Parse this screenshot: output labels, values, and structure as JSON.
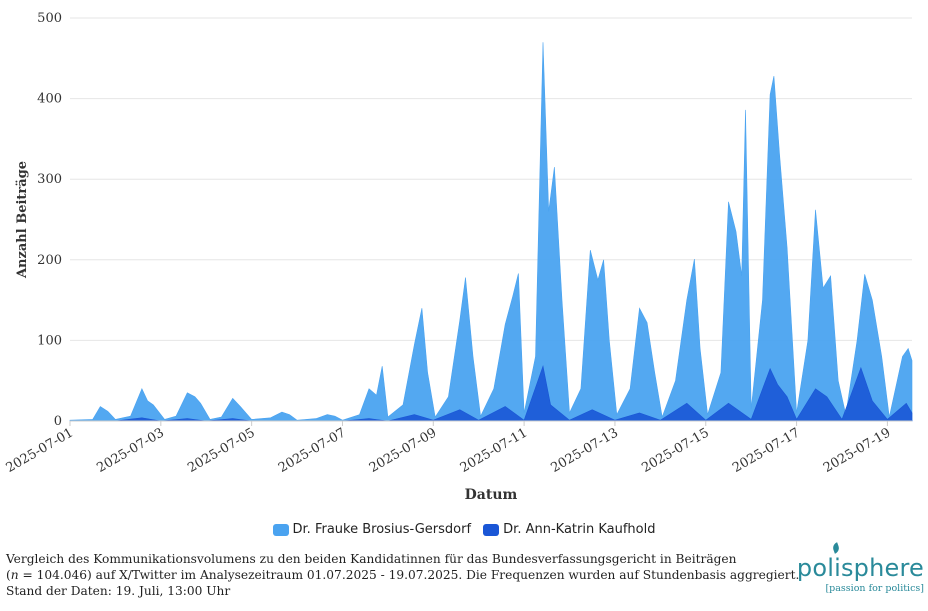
{
  "chart_data": {
    "type": "area",
    "title": "",
    "xlabel": "Datum",
    "ylabel": "Anzahl Beiträge",
    "ylim": [
      0,
      500
    ],
    "yticks": [
      "0",
      "100",
      "200",
      "300",
      "400",
      "500"
    ],
    "xlim": [
      "2025-07-01",
      "2025-07-19 13:00"
    ],
    "xticks": [
      "2025-07-01",
      "2025-07-03",
      "2025-07-05",
      "2025-07-07",
      "2025-07-09",
      "2025-07-11",
      "2025-07-13",
      "2025-07-15",
      "2025-07-17",
      "2025-07-19"
    ],
    "grid": true,
    "legend": "bottom-center",
    "series": [
      {
        "name": "Dr. Frauke Brosius-Gersdorf",
        "color": "#4aa3f0",
        "points": [
          [
            "2025-07-01 00:00",
            1
          ],
          [
            "2025-07-01 12:00",
            2
          ],
          [
            "2025-07-01 16:00",
            18
          ],
          [
            "2025-07-01 20:00",
            12
          ],
          [
            "2025-07-02 00:00",
            2
          ],
          [
            "2025-07-02 08:00",
            6
          ],
          [
            "2025-07-02 14:00",
            40
          ],
          [
            "2025-07-02 17:00",
            25
          ],
          [
            "2025-07-02 20:00",
            20
          ],
          [
            "2025-07-03 02:00",
            2
          ],
          [
            "2025-07-03 08:00",
            6
          ],
          [
            "2025-07-03 14:00",
            35
          ],
          [
            "2025-07-03 18:00",
            30
          ],
          [
            "2025-07-03 21:00",
            22
          ],
          [
            "2025-07-04 02:00",
            2
          ],
          [
            "2025-07-04 08:00",
            5
          ],
          [
            "2025-07-04 14:00",
            28
          ],
          [
            "2025-07-04 18:00",
            18
          ],
          [
            "2025-07-05 00:00",
            2
          ],
          [
            "2025-07-05 10:00",
            4
          ],
          [
            "2025-07-05 16:00",
            11
          ],
          [
            "2025-07-05 20:00",
            8
          ],
          [
            "2025-07-06 00:00",
            1
          ],
          [
            "2025-07-06 10:00",
            3
          ],
          [
            "2025-07-06 16:00",
            8
          ],
          [
            "2025-07-06 20:00",
            6
          ],
          [
            "2025-07-07 00:00",
            1
          ],
          [
            "2025-07-07 09:00",
            8
          ],
          [
            "2025-07-07 14:00",
            40
          ],
          [
            "2025-07-07 18:00",
            32
          ],
          [
            "2025-07-07 21:00",
            68
          ],
          [
            "2025-07-08 00:00",
            5
          ],
          [
            "2025-07-08 08:00",
            20
          ],
          [
            "2025-07-08 14:00",
            95
          ],
          [
            "2025-07-08 18:00",
            140
          ],
          [
            "2025-07-08 21:00",
            60
          ],
          [
            "2025-07-09 01:00",
            5
          ],
          [
            "2025-07-09 08:00",
            30
          ],
          [
            "2025-07-09 14:00",
            125
          ],
          [
            "2025-07-09 17:00",
            178
          ],
          [
            "2025-07-09 21:00",
            80
          ],
          [
            "2025-07-10 01:00",
            6
          ],
          [
            "2025-07-10 08:00",
            40
          ],
          [
            "2025-07-10 14:00",
            120
          ],
          [
            "2025-07-10 18:00",
            155
          ],
          [
            "2025-07-10 21:00",
            183
          ],
          [
            "2025-07-11 00:00",
            10
          ],
          [
            "2025-07-11 06:00",
            80
          ],
          [
            "2025-07-11 10:00",
            470
          ],
          [
            "2025-07-11 13:00",
            260
          ],
          [
            "2025-07-11 16:00",
            315
          ],
          [
            "2025-07-11 20:00",
            150
          ],
          [
            "2025-07-12 00:00",
            10
          ],
          [
            "2025-07-12 06:00",
            40
          ],
          [
            "2025-07-12 11:00",
            212
          ],
          [
            "2025-07-12 15:00",
            175
          ],
          [
            "2025-07-12 18:00",
            200
          ],
          [
            "2025-07-12 21:00",
            100
          ],
          [
            "2025-07-13 01:00",
            8
          ],
          [
            "2025-07-13 08:00",
            40
          ],
          [
            "2025-07-13 13:00",
            140
          ],
          [
            "2025-07-13 17:00",
            122
          ],
          [
            "2025-07-13 21:00",
            60
          ],
          [
            "2025-07-14 01:00",
            5
          ],
          [
            "2025-07-14 08:00",
            50
          ],
          [
            "2025-07-14 14:00",
            150
          ],
          [
            "2025-07-14 18:00",
            201
          ],
          [
            "2025-07-14 21:00",
            90
          ],
          [
            "2025-07-15 01:00",
            8
          ],
          [
            "2025-07-15 08:00",
            60
          ],
          [
            "2025-07-15 12:00",
            272
          ],
          [
            "2025-07-15 16:00",
            235
          ],
          [
            "2025-07-15 19:00",
            180
          ],
          [
            "2025-07-15 21:00",
            386
          ],
          [
            "2025-07-16 00:00",
            15
          ],
          [
            "2025-07-16 06:00",
            150
          ],
          [
            "2025-07-16 10:00",
            405
          ],
          [
            "2025-07-16 12:00",
            428
          ],
          [
            "2025-07-16 15:00",
            330
          ],
          [
            "2025-07-16 19:00",
            215
          ],
          [
            "2025-07-17 00:00",
            10
          ],
          [
            "2025-07-17 06:00",
            100
          ],
          [
            "2025-07-17 10:00",
            262
          ],
          [
            "2025-07-17 14:00",
            165
          ],
          [
            "2025-07-17 18:00",
            180
          ],
          [
            "2025-07-17 22:00",
            50
          ],
          [
            "2025-07-18 02:00",
            8
          ],
          [
            "2025-07-18 08:00",
            100
          ],
          [
            "2025-07-18 12:00",
            182
          ],
          [
            "2025-07-18 16:00",
            150
          ],
          [
            "2025-07-18 21:00",
            80
          ],
          [
            "2025-07-19 01:00",
            5
          ],
          [
            "2025-07-19 08:00",
            80
          ],
          [
            "2025-07-19 11:00",
            90
          ],
          [
            "2025-07-19 13:00",
            75
          ]
        ]
      },
      {
        "name": "Dr. Ann-Katrin Kaufhold",
        "color": "#1a56d6",
        "points": [
          [
            "2025-07-01 00:00",
            0
          ],
          [
            "2025-07-02 00:00",
            0
          ],
          [
            "2025-07-02 14:00",
            4
          ],
          [
            "2025-07-03 00:00",
            0
          ],
          [
            "2025-07-03 14:00",
            3
          ],
          [
            "2025-07-04 00:00",
            0
          ],
          [
            "2025-07-04 14:00",
            3
          ],
          [
            "2025-07-05 00:00",
            0
          ],
          [
            "2025-07-07 00:00",
            0
          ],
          [
            "2025-07-07 14:00",
            3
          ],
          [
            "2025-07-08 00:00",
            0
          ],
          [
            "2025-07-08 14:00",
            8
          ],
          [
            "2025-07-09 00:00",
            1
          ],
          [
            "2025-07-09 14:00",
            14
          ],
          [
            "2025-07-10 00:00",
            1
          ],
          [
            "2025-07-10 14:00",
            18
          ],
          [
            "2025-07-11 00:00",
            1
          ],
          [
            "2025-07-11 10:00",
            68
          ],
          [
            "2025-07-11 14:00",
            20
          ],
          [
            "2025-07-12 00:00",
            1
          ],
          [
            "2025-07-12 12:00",
            14
          ],
          [
            "2025-07-13 00:00",
            1
          ],
          [
            "2025-07-13 13:00",
            10
          ],
          [
            "2025-07-14 00:00",
            1
          ],
          [
            "2025-07-14 14:00",
            22
          ],
          [
            "2025-07-15 00:00",
            1
          ],
          [
            "2025-07-15 12:00",
            22
          ],
          [
            "2025-07-16 00:00",
            2
          ],
          [
            "2025-07-16 10:00",
            65
          ],
          [
            "2025-07-16 14:00",
            45
          ],
          [
            "2025-07-16 19:00",
            30
          ],
          [
            "2025-07-17 00:00",
            2
          ],
          [
            "2025-07-17 10:00",
            40
          ],
          [
            "2025-07-17 16:00",
            30
          ],
          [
            "2025-07-18 00:00",
            2
          ],
          [
            "2025-07-18 10:00",
            66
          ],
          [
            "2025-07-18 16:00",
            25
          ],
          [
            "2025-07-19 00:00",
            2
          ],
          [
            "2025-07-19 10:00",
            22
          ],
          [
            "2025-07-19 13:00",
            10
          ]
        ]
      }
    ]
  },
  "caption": {
    "line1": "Vergleich des Kommunikationsvolumens zu den beiden Kandidatinnen für das Bundesverfassungsgericht in Beiträgen",
    "line2_n": "n",
    "line2_rest": " = 104.046) auf X/Twitter im Analysezeitraum 01.07.2025 - 19.07.2025. Die Frequenzen wurden auf Stundenbasis aggregiert.",
    "line3": "Stand der Daten: 19. Juli, 13:00 Uhr"
  },
  "logo": {
    "name": "polisphere",
    "tagline": "[passion for politics]",
    "color": "#2a8a9a"
  }
}
